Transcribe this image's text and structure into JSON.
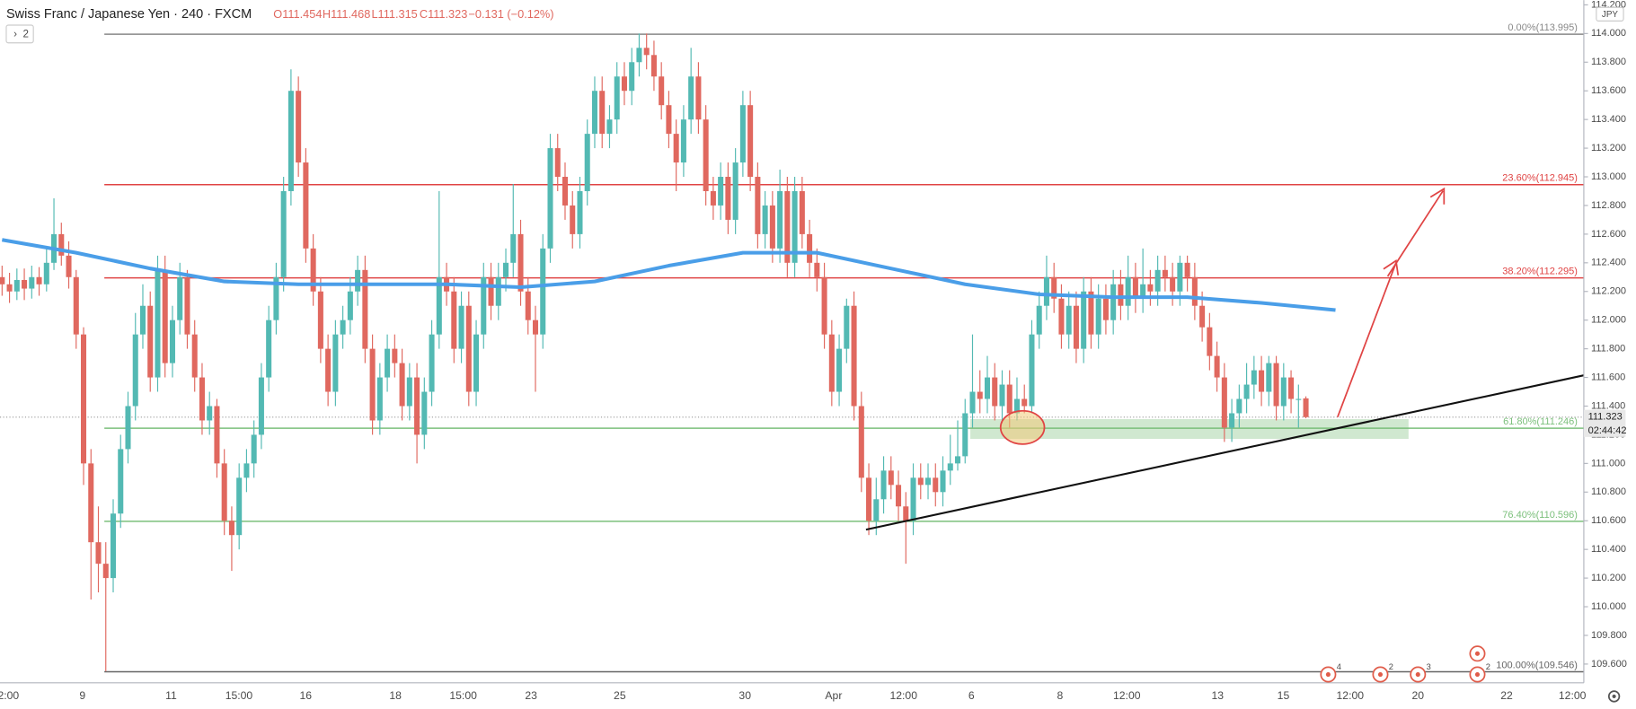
{
  "chart_data": {
    "type": "candlestick",
    "title": "Swiss Franc / Japanese Yen · 240 · FXCM",
    "header_values": [
      "O111.454",
      "H111.468",
      "L111.315",
      "C111.323",
      "−0.131 (−0.12%)"
    ],
    "indicator_count": "2",
    "currency": "JPY",
    "up_color": "#53b9b3",
    "down_color": "#e0685f",
    "ylim": [
      109.469,
      114.233
    ],
    "yticks": [
      {
        "value": 109.6,
        "label": "109.600"
      },
      {
        "value": 109.8,
        "label": "109.800"
      },
      {
        "value": 110.0,
        "label": "110.000"
      },
      {
        "value": 110.2,
        "label": "110.200"
      },
      {
        "value": 110.4,
        "label": "110.400"
      },
      {
        "value": 110.6,
        "label": "110.600"
      },
      {
        "value": 110.8,
        "label": "110.800"
      },
      {
        "value": 111.0,
        "label": "111.000"
      },
      {
        "value": 111.2,
        "label": "111.200"
      },
      {
        "value": 111.4,
        "label": "111.400"
      },
      {
        "value": 111.6,
        "label": "111.600"
      },
      {
        "value": 111.8,
        "label": "111.800"
      },
      {
        "value": 112.0,
        "label": "112.000"
      },
      {
        "value": 112.2,
        "label": "112.200"
      },
      {
        "value": 112.4,
        "label": "112.400"
      },
      {
        "value": 112.6,
        "label": "112.600"
      },
      {
        "value": 112.8,
        "label": "112.800"
      },
      {
        "value": 113.0,
        "label": "113.000"
      },
      {
        "value": 113.2,
        "label": "113.200"
      },
      {
        "value": 113.4,
        "label": "113.400"
      },
      {
        "value": 113.6,
        "label": "113.600"
      },
      {
        "value": 113.8,
        "label": "113.800"
      },
      {
        "value": 114.0,
        "label": "114.000"
      },
      {
        "value": 114.2,
        "label": "114.200"
      }
    ],
    "x_labels": [
      "2:00",
      "9",
      "11",
      "15:00",
      "16",
      "18",
      "15:00",
      "23",
      "25",
      "30",
      "Apr",
      "12:00",
      "6",
      "8",
      "12:00",
      "13",
      "15",
      "12:00",
      "20",
      "22",
      "12:00"
    ],
    "last_price": {
      "value": 111.323,
      "label": "111.323"
    },
    "countdown": "02:44:42",
    "fib_levels": [
      {
        "value": 113.995,
        "label": "0.00%(113.995)",
        "color": "#888888"
      },
      {
        "value": 112.945,
        "label": "23.60%(112.945)",
        "color": "#e04444"
      },
      {
        "value": 112.295,
        "label": "38.20%(112.295)",
        "color": "#e04444"
      },
      {
        "value": 111.246,
        "label": "61.80%(111.246)",
        "color": "#7cc07c"
      },
      {
        "value": 110.596,
        "label": "76.40%(110.596)",
        "color": "#7cc07c"
      },
      {
        "value": 109.546,
        "label": "100.00%(109.546)",
        "color": "#666666"
      }
    ],
    "moving_average": {
      "color": "#4a9ee8",
      "values": [
        112.56,
        112.47,
        112.36,
        112.27,
        112.25,
        112.25,
        112.25,
        112.23,
        112.27,
        112.38,
        112.47,
        112.47,
        112.36,
        112.25,
        112.18,
        112.16,
        112.16,
        112.12,
        112.07
      ]
    },
    "trendline": {
      "color": "#111111",
      "from": 110.538,
      "to": 111.615
    },
    "events": [
      "4",
      "2",
      "3",
      "2"
    ],
    "candles": [
      [
        112.3,
        112.38,
        112.17,
        112.25
      ],
      [
        112.25,
        112.33,
        112.12,
        112.2
      ],
      [
        112.2,
        112.36,
        112.14,
        112.28
      ],
      [
        112.28,
        112.36,
        112.14,
        112.22
      ],
      [
        112.22,
        112.38,
        112.15,
        112.3
      ],
      [
        112.3,
        112.37,
        112.17,
        112.25
      ],
      [
        112.25,
        112.5,
        112.2,
        112.4
      ],
      [
        112.4,
        112.85,
        112.35,
        112.6
      ],
      [
        112.6,
        112.68,
        112.38,
        112.45
      ],
      [
        112.45,
        112.55,
        112.22,
        112.3
      ],
      [
        112.3,
        112.35,
        111.8,
        111.9
      ],
      [
        111.9,
        111.95,
        110.85,
        111.0
      ],
      [
        111.0,
        111.1,
        110.05,
        110.45
      ],
      [
        110.45,
        110.7,
        110.1,
        110.3
      ],
      [
        110.3,
        110.45,
        109.55,
        110.2
      ],
      [
        110.2,
        110.75,
        110.1,
        110.65
      ],
      [
        110.65,
        111.2,
        110.55,
        111.1
      ],
      [
        111.1,
        111.5,
        111.0,
        111.4
      ],
      [
        111.4,
        112.05,
        111.3,
        111.9
      ],
      [
        111.9,
        112.25,
        111.8,
        112.1
      ],
      [
        112.1,
        112.2,
        111.5,
        111.6
      ],
      [
        111.6,
        112.45,
        111.5,
        112.35
      ],
      [
        112.35,
        112.45,
        111.6,
        111.7
      ],
      [
        111.7,
        112.1,
        111.6,
        112.0
      ],
      [
        112.0,
        112.4,
        111.9,
        112.3
      ],
      [
        112.3,
        112.35,
        111.8,
        111.9
      ],
      [
        111.9,
        112.0,
        111.5,
        111.6
      ],
      [
        111.6,
        111.7,
        111.2,
        111.3
      ],
      [
        111.3,
        111.5,
        111.2,
        111.4
      ],
      [
        111.4,
        111.45,
        110.9,
        111.0
      ],
      [
        111.0,
        111.1,
        110.5,
        110.6
      ],
      [
        110.6,
        110.7,
        110.25,
        110.5
      ],
      [
        110.5,
        111.0,
        110.4,
        110.9
      ],
      [
        110.9,
        111.1,
        110.8,
        111.0
      ],
      [
        111.0,
        111.3,
        110.9,
        111.2
      ],
      [
        111.2,
        111.7,
        111.1,
        111.6
      ],
      [
        111.6,
        112.1,
        111.5,
        112.0
      ],
      [
        112.0,
        112.4,
        111.9,
        112.3
      ],
      [
        112.3,
        113.0,
        112.2,
        112.9
      ],
      [
        112.9,
        113.75,
        112.8,
        113.6
      ],
      [
        113.6,
        113.7,
        113.0,
        113.1
      ],
      [
        113.1,
        113.2,
        112.4,
        112.5
      ],
      [
        112.5,
        112.6,
        112.1,
        112.2
      ],
      [
        112.2,
        112.3,
        111.7,
        111.8
      ],
      [
        111.8,
        111.9,
        111.4,
        111.5
      ],
      [
        111.5,
        112.0,
        111.4,
        111.9
      ],
      [
        111.9,
        112.1,
        111.8,
        112.0
      ],
      [
        112.0,
        112.3,
        111.9,
        112.2
      ],
      [
        112.2,
        112.45,
        112.1,
        112.35
      ],
      [
        112.35,
        112.45,
        111.7,
        111.8
      ],
      [
        111.8,
        111.9,
        111.2,
        111.3
      ],
      [
        111.3,
        111.7,
        111.2,
        111.6
      ],
      [
        111.6,
        111.9,
        111.5,
        111.8
      ],
      [
        111.8,
        111.9,
        111.6,
        111.7
      ],
      [
        111.7,
        111.8,
        111.3,
        111.4
      ],
      [
        111.4,
        111.7,
        111.3,
        111.6
      ],
      [
        111.6,
        111.7,
        111.0,
        111.2
      ],
      [
        111.2,
        111.6,
        111.1,
        111.5
      ],
      [
        111.5,
        112.0,
        111.4,
        111.9
      ],
      [
        111.9,
        112.9,
        111.8,
        112.3
      ],
      [
        112.3,
        112.4,
        112.1,
        112.2
      ],
      [
        112.2,
        112.3,
        111.7,
        111.8
      ],
      [
        111.8,
        112.2,
        111.7,
        112.1
      ],
      [
        112.1,
        112.2,
        111.4,
        111.5
      ],
      [
        111.5,
        112.0,
        111.4,
        111.9
      ],
      [
        111.9,
        112.4,
        111.8,
        112.3
      ],
      [
        112.3,
        112.4,
        112.0,
        112.1
      ],
      [
        112.1,
        112.4,
        112.0,
        112.3
      ],
      [
        112.3,
        112.5,
        112.2,
        112.4
      ],
      [
        112.4,
        112.95,
        112.3,
        112.6
      ],
      [
        112.6,
        112.7,
        112.1,
        112.2
      ],
      [
        112.2,
        112.3,
        111.9,
        112.0
      ],
      [
        112.0,
        112.1,
        111.5,
        111.9
      ],
      [
        111.9,
        112.6,
        111.8,
        112.5
      ],
      [
        112.5,
        113.3,
        112.4,
        113.2
      ],
      [
        113.2,
        113.3,
        112.9,
        113.0
      ],
      [
        113.0,
        113.1,
        112.7,
        112.8
      ],
      [
        112.8,
        112.9,
        112.5,
        112.6
      ],
      [
        112.6,
        113.0,
        112.5,
        112.9
      ],
      [
        112.9,
        113.4,
        112.8,
        113.3
      ],
      [
        113.3,
        113.7,
        113.2,
        113.6
      ],
      [
        113.6,
        113.7,
        113.2,
        113.3
      ],
      [
        113.3,
        113.5,
        113.2,
        113.4
      ],
      [
        113.4,
        113.8,
        113.3,
        113.7
      ],
      [
        113.7,
        113.8,
        113.5,
        113.6
      ],
      [
        113.6,
        113.9,
        113.5,
        113.8
      ],
      [
        113.8,
        114.0,
        113.7,
        113.9
      ],
      [
        113.9,
        114.0,
        113.75,
        113.85
      ],
      [
        113.85,
        113.95,
        113.6,
        113.7
      ],
      [
        113.7,
        113.8,
        113.4,
        113.5
      ],
      [
        113.5,
        113.6,
        113.2,
        113.3
      ],
      [
        113.3,
        113.4,
        112.9,
        113.1
      ],
      [
        113.1,
        113.5,
        113.0,
        113.4
      ],
      [
        113.4,
        113.9,
        113.3,
        113.7
      ],
      [
        113.7,
        113.8,
        113.3,
        113.4
      ],
      [
        113.4,
        113.5,
        112.8,
        112.9
      ],
      [
        112.9,
        113.0,
        112.7,
        112.8
      ],
      [
        112.8,
        113.1,
        112.7,
        113.0
      ],
      [
        113.0,
        113.1,
        112.6,
        112.7
      ],
      [
        112.7,
        113.2,
        112.6,
        113.1
      ],
      [
        113.1,
        113.6,
        113.0,
        113.5
      ],
      [
        113.5,
        113.6,
        112.9,
        113.0
      ],
      [
        113.0,
        113.1,
        112.5,
        112.6
      ],
      [
        112.6,
        112.9,
        112.5,
        112.8
      ],
      [
        112.8,
        112.9,
        112.4,
        112.5
      ],
      [
        112.5,
        113.05,
        112.4,
        112.9
      ],
      [
        112.9,
        113.0,
        112.3,
        112.4
      ],
      [
        112.4,
        113.0,
        112.3,
        112.9
      ],
      [
        112.9,
        113.0,
        112.5,
        112.6
      ],
      [
        112.6,
        112.7,
        112.3,
        112.4
      ],
      [
        112.4,
        112.5,
        112.2,
        112.3
      ],
      [
        112.3,
        112.4,
        111.8,
        111.9
      ],
      [
        111.9,
        112.0,
        111.4,
        111.5
      ],
      [
        111.5,
        111.9,
        111.4,
        111.8
      ],
      [
        111.8,
        112.15,
        111.7,
        112.1
      ],
      [
        112.1,
        112.2,
        111.3,
        111.4
      ],
      [
        111.4,
        111.5,
        110.8,
        110.9
      ],
      [
        110.9,
        111.0,
        110.5,
        110.6
      ],
      [
        110.6,
        110.9,
        110.5,
        110.75
      ],
      [
        110.75,
        111.05,
        110.65,
        110.95
      ],
      [
        110.95,
        111.05,
        110.75,
        110.85
      ],
      [
        110.85,
        110.95,
        110.6,
        110.7
      ],
      [
        110.7,
        110.8,
        110.3,
        110.6
      ],
      [
        110.6,
        111.0,
        110.5,
        110.9
      ],
      [
        110.9,
        111.0,
        110.75,
        110.85
      ],
      [
        110.85,
        111.0,
        110.75,
        110.9
      ],
      [
        110.9,
        111.0,
        110.7,
        110.8
      ],
      [
        110.8,
        111.05,
        110.7,
        110.95
      ],
      [
        110.95,
        111.2,
        110.85,
        111.0
      ],
      [
        111.0,
        111.3,
        110.95,
        111.05
      ],
      [
        111.05,
        111.45,
        111.0,
        111.35
      ],
      [
        111.35,
        111.9,
        111.25,
        111.5
      ],
      [
        111.5,
        111.65,
        111.35,
        111.45
      ],
      [
        111.45,
        111.75,
        111.35,
        111.6
      ],
      [
        111.6,
        111.7,
        111.3,
        111.4
      ],
      [
        111.4,
        111.65,
        111.3,
        111.55
      ],
      [
        111.55,
        111.65,
        111.25,
        111.35
      ],
      [
        111.35,
        111.6,
        111.3,
        111.45
      ],
      [
        111.45,
        111.55,
        111.35,
        111.4
      ],
      [
        111.4,
        112.0,
        111.35,
        111.9
      ],
      [
        111.9,
        112.2,
        111.8,
        112.1
      ],
      [
        112.1,
        112.45,
        112.0,
        112.3
      ],
      [
        112.3,
        112.4,
        112.05,
        112.15
      ],
      [
        112.15,
        112.25,
        111.8,
        111.9
      ],
      [
        111.9,
        112.2,
        111.8,
        112.1
      ],
      [
        112.1,
        112.2,
        111.7,
        111.8
      ],
      [
        111.8,
        112.3,
        111.7,
        112.2
      ],
      [
        112.2,
        112.3,
        111.8,
        111.9
      ],
      [
        111.9,
        112.25,
        111.8,
        112.15
      ],
      [
        112.15,
        112.25,
        111.9,
        112.0
      ],
      [
        112.0,
        112.35,
        111.9,
        112.25
      ],
      [
        112.25,
        112.35,
        112.0,
        112.1
      ],
      [
        112.1,
        112.45,
        112.0,
        112.3
      ],
      [
        112.3,
        112.4,
        112.05,
        112.15
      ],
      [
        112.15,
        112.5,
        112.05,
        112.25
      ],
      [
        112.25,
        112.35,
        112.1,
        112.2
      ],
      [
        112.2,
        112.45,
        112.1,
        112.35
      ],
      [
        112.35,
        112.45,
        112.2,
        112.3
      ],
      [
        112.3,
        112.4,
        112.1,
        112.2
      ],
      [
        112.2,
        112.45,
        112.1,
        112.4
      ],
      [
        112.4,
        112.45,
        112.2,
        112.3
      ],
      [
        112.3,
        112.4,
        112.0,
        112.1
      ],
      [
        112.1,
        112.2,
        111.85,
        111.95
      ],
      [
        111.95,
        112.05,
        111.65,
        111.75
      ],
      [
        111.75,
        111.85,
        111.5,
        111.6
      ],
      [
        111.6,
        111.7,
        111.15,
        111.25
      ],
      [
        111.25,
        111.45,
        111.15,
        111.35
      ],
      [
        111.35,
        111.55,
        111.25,
        111.45
      ],
      [
        111.45,
        111.7,
        111.35,
        111.55
      ],
      [
        111.55,
        111.75,
        111.45,
        111.65
      ],
      [
        111.65,
        111.75,
        111.4,
        111.5
      ],
      [
        111.5,
        111.75,
        111.4,
        111.7
      ],
      [
        111.7,
        111.75,
        111.3,
        111.4
      ],
      [
        111.4,
        111.7,
        111.3,
        111.6
      ],
      [
        111.6,
        111.65,
        111.35,
        111.45
      ],
      [
        111.45,
        111.55,
        111.25,
        111.45
      ],
      [
        111.454,
        111.468,
        111.315,
        111.323
      ]
    ]
  }
}
